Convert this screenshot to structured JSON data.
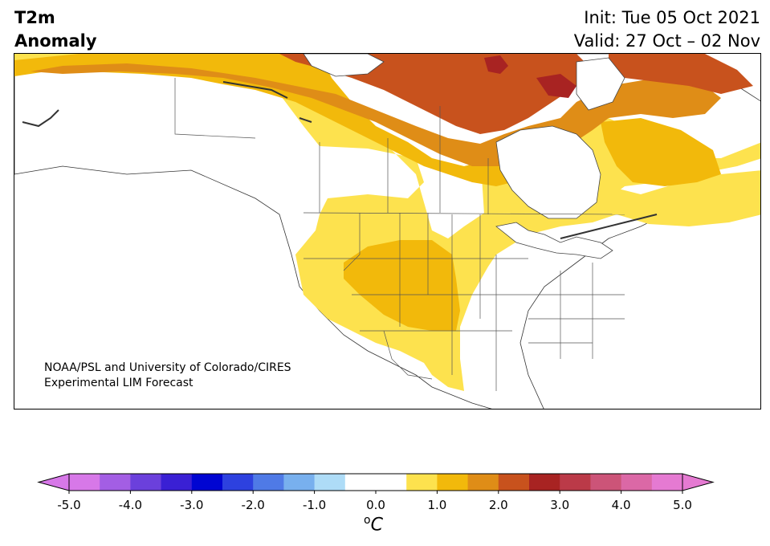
{
  "title": {
    "line1": "T2m",
    "line2": "Anomaly"
  },
  "init_label": "Init: Tue 05 Oct 2021",
  "valid_label": "Valid: 27 Oct – 02 Nov",
  "credit": {
    "line1": "NOAA/PSL and University of Colorado/CIRES",
    "line2": "Experimental LIM Forecast"
  },
  "colorbar": {
    "unit_sup": "o",
    "unit": "C",
    "tick_labels": [
      "-5.0",
      "-4.0",
      "-3.0",
      "-2.0",
      "-1.0",
      "0.0",
      "1.0",
      "2.0",
      "3.0",
      "4.0",
      "5.0"
    ],
    "range": [
      -5.0,
      5.0
    ],
    "step": 0.5,
    "colors": [
      "#d778e8",
      "#a35ee4",
      "#6b40dc",
      "#3a20d4",
      "#0005d2",
      "#2d41df",
      "#4f7ae6",
      "#78b0ee",
      "#aedcf7",
      "#ffffff",
      "#ffffff",
      "#fde24e",
      "#f2b90b",
      "#df8d17",
      "#c8521d",
      "#a82322",
      "#bb3a48",
      "#cc5478",
      "#db68a6",
      "#e57ad2"
    ],
    "under_color": "#d778e8",
    "over_color": "#e57ad2"
  },
  "map_colors": {
    "ocean": "#ffffff",
    "land_neutral": "#ffffff",
    "anom_0_5_to_1": "#fde24e",
    "anom_1_to_1_5": "#f2b90b",
    "anom_1_5_to_2": "#df8d17",
    "anom_2_to_2_5": "#c8521d",
    "anom_2_5_to_3": "#a82322"
  }
}
